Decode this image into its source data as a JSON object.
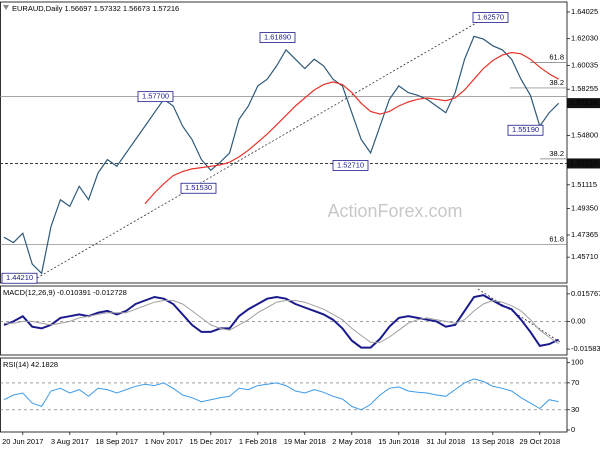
{
  "chart_data": [
    {
      "type": "line",
      "title": "EURAUD,Daily 1.56697 1.57332 1.56673 1.57216",
      "watermark": "ActionForex.com",
      "categories": [
        null,
        null,
        "20 Jun 2017",
        null,
        null,
        null,
        null,
        "3 Aug 2017",
        null,
        null,
        null,
        null,
        "18 Sep 2017",
        null,
        null,
        null,
        null,
        "1 Nov 2017",
        null,
        null,
        null,
        null,
        "15 Dec 2017",
        null,
        null,
        null,
        null,
        "1 Feb 2018",
        null,
        null,
        null,
        null,
        "19 Mar 2018",
        null,
        null,
        null,
        null,
        "2 May 2018",
        null,
        null,
        null,
        null,
        "15 Jun 2018",
        null,
        null,
        null,
        null,
        "31 Jul 2018",
        null,
        null,
        null,
        null,
        "13 Sep 2018",
        null,
        null,
        null,
        null,
        "29 Oct 2018",
        null,
        null
      ],
      "series": [
        {
          "color": "#2f5a7a",
          "values": [
            1.472,
            1.468,
            1.475,
            1.452,
            1.445,
            1.48,
            1.5,
            1.495,
            1.51,
            1.5,
            1.52,
            1.53,
            1.525,
            1.535,
            1.545,
            1.555,
            1.565,
            1.575,
            1.57,
            1.555,
            1.545,
            1.53,
            1.522,
            1.528,
            1.535,
            1.56,
            1.57,
            1.585,
            1.59,
            1.6,
            1.612,
            1.605,
            1.598,
            1.605,
            1.6,
            1.59,
            1.585,
            1.565,
            1.545,
            1.535,
            1.555,
            1.575,
            1.585,
            1.58,
            1.578,
            1.575,
            1.57,
            1.565,
            1.58,
            1.605,
            1.622,
            1.62,
            1.615,
            1.612,
            1.605,
            1.59,
            1.578,
            1.555,
            1.565,
            1.572
          ]
        },
        {
          "color": "#e8332a",
          "values": [
            null,
            null,
            null,
            null,
            null,
            null,
            null,
            null,
            null,
            null,
            null,
            null,
            null,
            null,
            null,
            1.497,
            1.505,
            1.512,
            1.518,
            1.521,
            1.523,
            1.524,
            1.525,
            1.526,
            1.528,
            1.532,
            1.537,
            1.543,
            1.549,
            1.556,
            1.563,
            1.57,
            1.576,
            1.582,
            1.586,
            1.588,
            1.586,
            1.58,
            1.572,
            1.566,
            1.564,
            1.566,
            1.57,
            1.573,
            1.575,
            1.576,
            1.575,
            1.574,
            1.576,
            1.582,
            1.59,
            1.598,
            1.604,
            1.608,
            1.61,
            1.609,
            1.605,
            1.599,
            1.594,
            1.59
          ]
        }
      ],
      "ylim": [
        1.4378,
        1.6477
      ],
      "yticks": [
        1.64025,
        {
          "value": 1.6203,
          "label": "1.62030"
        },
        1.60035,
        1.58255,
        {
          "value": 1.548,
          "label": "1.54800"
        },
        1.51115,
        {
          "value": 1.4935,
          "label": "1.49350"
        },
        1.47365,
        {
          "value": 1.4571,
          "label": "1.45710"
        }
      ],
      "grid": false,
      "levels": [
        {
          "value": 1.5772,
          "style": "solid"
        },
        {
          "value": 1.5271,
          "style": "dashed"
        }
      ],
      "fib_levels": [
        {
          "value": 1.6025,
          "label": "61.8"
        },
        {
          "value": 1.5835,
          "label": "38.2"
        },
        {
          "value": 1.5305,
          "label": "38.2"
        },
        {
          "value": 1.4665,
          "label": "61.8"
        }
      ],
      "annotations": [
        {
          "value": 1.4421,
          "label": "1.44210"
        },
        {
          "value": 1.577,
          "label": "1.57700"
        },
        {
          "value": 1.5153,
          "label": "1.51530"
        },
        {
          "value": 1.6189,
          "label": "1.61890"
        },
        {
          "value": 1.5271,
          "label": "1.52710"
        },
        {
          "value": 1.6257,
          "label": "1.62570"
        },
        {
          "value": 1.5519,
          "label": "1.55190"
        }
      ],
      "price_labels": [
        {
          "value": 1.57216,
          "label": "1.57216"
        },
        {
          "value": 1.5271,
          "label": "1.52710"
        }
      ]
    },
    {
      "type": "line",
      "title": "MACD(12,26,9) -0.010391 -0.012728",
      "series": [
        {
          "color": "#1a1a8c",
          "values": [
            -0.002,
            0.0,
            0.003,
            -0.003,
            -0.004,
            -0.002,
            0.002,
            0.003,
            0.004,
            0.003,
            0.005,
            0.006,
            0.004,
            0.006,
            0.01,
            0.012,
            0.014,
            0.013,
            0.01,
            0.004,
            -0.002,
            -0.006,
            -0.006,
            -0.004,
            -0.004,
            0.003,
            0.007,
            0.01,
            0.013,
            0.014,
            0.013,
            0.01,
            0.008,
            0.006,
            0.004,
            0.001,
            -0.004,
            -0.011,
            -0.015,
            -0.015,
            -0.01,
            -0.003,
            0.002,
            0.003,
            0.002,
            0.001,
            0.0,
            -0.003,
            -0.002,
            0.006,
            0.014,
            0.015,
            0.012,
            0.009,
            0.007,
            0.001,
            -0.006,
            -0.014,
            -0.013,
            -0.010391
          ]
        },
        {
          "color": "#a0a0a0",
          "values": [
            -0.001,
            -0.001,
            0.0,
            0.0,
            -0.001,
            -0.002,
            -0.001,
            0.0,
            0.002,
            0.003,
            0.004,
            0.005,
            0.005,
            0.005,
            0.007,
            0.009,
            0.011,
            0.012,
            0.012,
            0.01,
            0.006,
            0.002,
            -0.002,
            -0.004,
            -0.005,
            -0.002,
            0.001,
            0.005,
            0.008,
            0.011,
            0.012,
            0.012,
            0.011,
            0.009,
            0.007,
            0.004,
            0.001,
            -0.004,
            -0.008,
            -0.012,
            -0.012,
            -0.009,
            -0.005,
            -0.001,
            0.001,
            0.002,
            0.001,
            0.0,
            -0.001,
            0.001,
            0.006,
            0.01,
            0.012,
            0.011,
            0.009,
            0.006,
            0.001,
            -0.005,
            -0.009,
            -0.012728
          ]
        }
      ],
      "ylim": [
        -0.01922,
        0.02028
      ],
      "yticks": [
        0.015767,
        {
          "value": 0,
          "label": "0.00"
        },
        -0.015834
      ],
      "grid": true
    },
    {
      "type": "line",
      "title": "RSI(14) 42.1828",
      "series": [
        {
          "color": "#3d9be9",
          "values": [
            45,
            52,
            55,
            40,
            35,
            58,
            62,
            55,
            60,
            50,
            62,
            60,
            55,
            60,
            65,
            68,
            66,
            70,
            62,
            52,
            48,
            42,
            45,
            48,
            50,
            62,
            60,
            66,
            68,
            70,
            66,
            58,
            55,
            60,
            56,
            50,
            46,
            35,
            30,
            38,
            52,
            62,
            64,
            58,
            56,
            55,
            52,
            50,
            60,
            70,
            76,
            72,
            65,
            62,
            58,
            48,
            40,
            32,
            45,
            42.1828
          ]
        }
      ],
      "ylim": [
        -3,
        107
      ],
      "yticks": [
        100,
        70,
        30,
        0
      ],
      "grid": true
    }
  ]
}
